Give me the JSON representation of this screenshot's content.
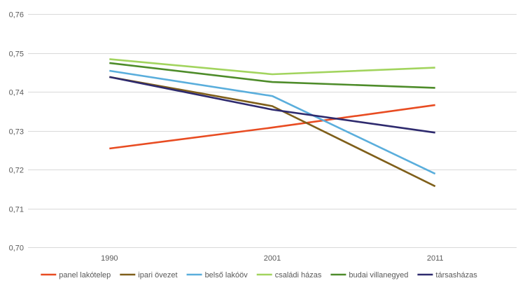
{
  "chart_data": {
    "type": "line",
    "categories": [
      "1990",
      "2001",
      "2011"
    ],
    "ylim": [
      0.7,
      0.76
    ],
    "yticks": [
      "0,70",
      "0,71",
      "0,72",
      "0,73",
      "0,74",
      "0,75",
      "0,76"
    ],
    "yticks_values": [
      0.7,
      0.71,
      0.72,
      0.73,
      0.74,
      0.75,
      0.76
    ],
    "grid": true,
    "legend_position": "bottom",
    "title": "",
    "xlabel": "",
    "ylabel": "",
    "series": [
      {
        "name": "panel lakótelep",
        "color": "#e84c22",
        "values": [
          0.7254,
          0.7308,
          0.7366
        ]
      },
      {
        "name": "ipari övezet",
        "color": "#7f5f1a",
        "values": [
          0.7438,
          0.7363,
          0.7157
        ]
      },
      {
        "name": "belső lakóöv",
        "color": "#5aaedc",
        "values": [
          0.7454,
          0.7389,
          0.7189
        ]
      },
      {
        "name": "családi házas",
        "color": "#a2d45e",
        "values": [
          0.7484,
          0.7445,
          0.7462
        ]
      },
      {
        "name": "budai villanegyed",
        "color": "#4e8c2a",
        "values": [
          0.7474,
          0.7425,
          0.741
        ]
      },
      {
        "name": "társasházas",
        "color": "#2e2a6e",
        "values": [
          0.7438,
          0.7354,
          0.7295
        ]
      }
    ]
  }
}
